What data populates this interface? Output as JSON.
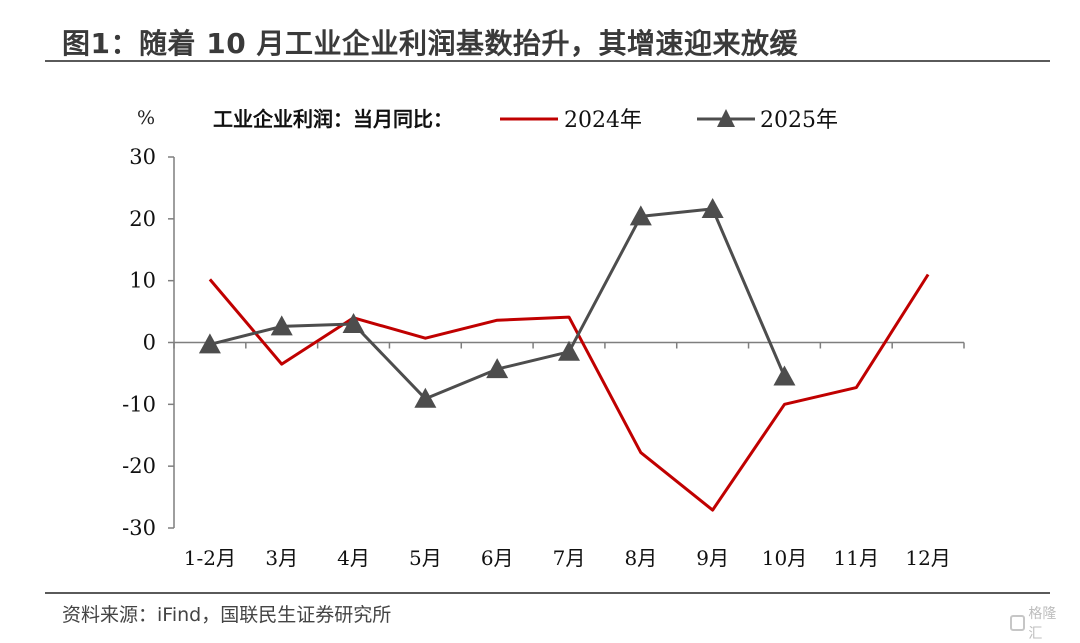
{
  "title": "图1：随着 10 月工业企业利润基数抬升，其增速迎来放缓",
  "source": "资料来源：iFind，国联民生证券研究所",
  "watermark": "格隆汇",
  "chart_data": {
    "type": "line",
    "ylabel": "%",
    "legend_title": "工业企业利润：当月同比：",
    "categories": [
      "1-2月",
      "3月",
      "4月",
      "5月",
      "6月",
      "7月",
      "8月",
      "9月",
      "10月",
      "11月",
      "12月"
    ],
    "ylim": [
      -30,
      30
    ],
    "yticks": [
      30,
      20,
      10,
      0,
      -10,
      -20,
      -30
    ],
    "ytick_labels": [
      "30",
      "20",
      "10",
      "0",
      "-10",
      "-20",
      "-30"
    ],
    "grid": false,
    "legend_position": "top",
    "series": [
      {
        "name": "2024年",
        "color": "#c00000",
        "marker": "none",
        "values": [
          10.2,
          -3.5,
          4.0,
          0.7,
          3.6,
          4.1,
          -17.8,
          -27.1,
          -10.0,
          -7.3,
          11.0
        ]
      },
      {
        "name": "2025年",
        "color": "#4d4d4d",
        "marker": "triangle",
        "values": [
          -0.3,
          2.6,
          3.0,
          -9.1,
          -4.3,
          -1.5,
          20.4,
          21.6,
          -5.5,
          null,
          null
        ]
      }
    ]
  }
}
